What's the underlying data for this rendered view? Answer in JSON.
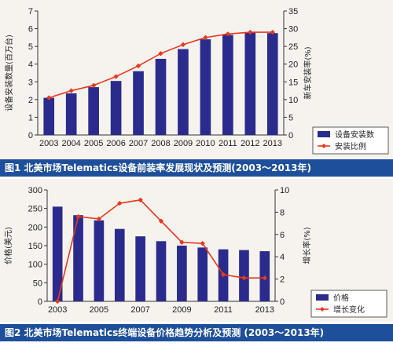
{
  "chart_data": [
    {
      "type": "bar",
      "title": "",
      "xlabel": "",
      "ylabel": "设备安装数量(百万台)",
      "y2label": "新车安装率(%)",
      "categories": [
        "2003",
        "2004",
        "2005",
        "2006",
        "2007",
        "2008",
        "2009",
        "2010",
        "2011",
        "2012",
        "2013"
      ],
      "ylim": [
        0,
        7
      ],
      "y2lim": [
        0,
        35
      ],
      "yticks": [
        "0",
        "1",
        "2",
        "3",
        "4",
        "5",
        "6",
        "7"
      ],
      "y2ticks": [
        "0",
        "5",
        "10",
        "15",
        "20",
        "25",
        "30",
        "35"
      ],
      "series": [
        {
          "name": "设备安装数",
          "kind": "bar",
          "axis": "left",
          "color": "#2a2b8c",
          "values": [
            2.1,
            2.35,
            2.7,
            3.05,
            3.6,
            4.3,
            4.85,
            5.4,
            5.65,
            5.8,
            5.75
          ]
        },
        {
          "name": "安装比例",
          "kind": "line",
          "axis": "right",
          "color": "#e8381e",
          "values": [
            10.5,
            12.5,
            14,
            16.5,
            19.5,
            23,
            25.5,
            27.5,
            28.5,
            29,
            29
          ]
        }
      ],
      "legend": "bottom-right",
      "grid": false,
      "caption": "图1  北美市场Telematics设备前装率发展现状及预测(2003～2013年)"
    },
    {
      "type": "bar",
      "title": "",
      "xlabel": "",
      "ylabel": "价格(美元)",
      "y2label": "增长率(%)",
      "categories": [
        "2003",
        "2004",
        "2005",
        "2006",
        "2007",
        "2008",
        "2009",
        "2010",
        "2011",
        "2012",
        "2013"
      ],
      "xtick_labels": [
        "2003",
        "",
        "2005",
        "",
        "2007",
        "",
        "2009",
        "",
        "2011",
        "",
        "2013"
      ],
      "ylim": [
        0,
        300
      ],
      "y2lim": [
        0,
        10
      ],
      "yticks": [
        "0",
        "50",
        "100",
        "150",
        "200",
        "250",
        "300"
      ],
      "y2ticks": [
        "0",
        "2",
        "4",
        "6",
        "8",
        "10"
      ],
      "series": [
        {
          "name": "价格",
          "kind": "bar",
          "axis": "left",
          "color": "#2a2b8c",
          "values": [
            255,
            232,
            218,
            195,
            175,
            162,
            150,
            145,
            140,
            138,
            135
          ]
        },
        {
          "name": "增长变化",
          "kind": "line",
          "axis": "right",
          "color": "#e8381e",
          "values": [
            0,
            7.6,
            7.4,
            8.8,
            9.1,
            7.2,
            5.3,
            5.2,
            2.4,
            2.1,
            2.1
          ]
        }
      ],
      "legend": "bottom-right",
      "grid": false,
      "caption": "图2  北美市场Telematics终端设备价格趋势分析及预测 (2003～2013年)"
    }
  ]
}
